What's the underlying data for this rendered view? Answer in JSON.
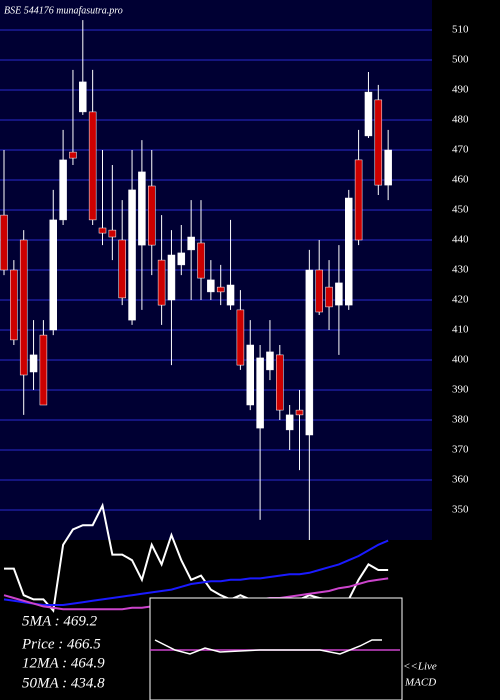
{
  "chart_data": {
    "type": "candlestick",
    "title": "BSE 544176 munafasutra.pro",
    "categories": [
      null,
      null,
      null,
      null,
      null,
      null,
      null,
      null,
      null,
      null,
      null,
      null,
      null,
      null,
      null,
      null,
      null,
      null,
      null,
      null,
      null,
      null,
      null,
      null,
      null,
      null,
      null,
      null,
      null,
      null,
      null,
      null,
      null,
      null,
      null,
      null,
      null,
      null,
      null,
      null
    ],
    "open": [
      448.3,
      430,
      440,
      396,
      408.3,
      410,
      446.7,
      469.3,
      482.7,
      482.7,
      444,
      443.3,
      440,
      413.3,
      438.3,
      458,
      433.3,
      420,
      431.7,
      436.7,
      439,
      422.7,
      424.3,
      418.3,
      416.7,
      385,
      377.3,
      396.7,
      401.7,
      376.7,
      383.3,
      375,
      430,
      424.3,
      418.3,
      418.3,
      466.7,
      474.7,
      486.7,
      458.3
    ],
    "high": [
      470,
      433.3,
      443.3,
      413.3,
      413.3,
      456.7,
      476.7,
      496.7,
      513.3,
      496.7,
      470,
      465,
      453.3,
      470,
      473.3,
      470,
      448.3,
      443.3,
      445,
      453.3,
      453.3,
      433.3,
      431.7,
      446.7,
      423.3,
      413.3,
      405,
      413.3,
      405,
      385,
      390,
      436.7,
      440,
      433.3,
      438.3,
      456.7,
      476.7,
      496,
      491.7,
      476.7
    ],
    "low": [
      428.3,
      405,
      381.7,
      390,
      385,
      408.3,
      445,
      465,
      481.7,
      445,
      438.3,
      433.3,
      418.3,
      411.7,
      416.7,
      428.3,
      411.7,
      398.3,
      428.3,
      420,
      420,
      420,
      418.3,
      416.7,
      396.7,
      383.3,
      346.7,
      393.3,
      380,
      370,
      363.3,
      340,
      415,
      410,
      401.7,
      416.7,
      438.3,
      474,
      455,
      453.3
    ],
    "close": [
      430,
      406.7,
      395,
      401.7,
      385,
      446.7,
      466.7,
      467.3,
      492.7,
      446.7,
      442.3,
      441,
      420.7,
      456.7,
      462.7,
      438.3,
      418.3,
      435,
      435.7,
      441,
      427.3,
      426.7,
      422.7,
      425,
      398.3,
      405,
      400.7,
      402.7,
      383.3,
      381.7,
      381.7,
      430,
      416,
      417.7,
      425.7,
      454,
      440,
      489.3,
      458.3,
      470
    ],
    "up_color": "#ffffff",
    "down_color": "#cc0000",
    "ylim": [
      340,
      520
    ],
    "yticks": [
      350,
      360,
      370,
      380,
      390,
      400,
      410,
      420,
      430,
      440,
      450,
      460,
      470,
      480,
      490,
      500,
      510
    ],
    "grid": true,
    "indicator_panel": {
      "ylim": [
        0,
        100
      ],
      "series": [
        {
          "color": "#ffffff",
          "values": [
            51,
            51,
            32,
            29,
            29,
            21,
            68,
            79,
            82,
            82,
            96,
            61,
            61,
            57,
            43,
            68,
            54,
            75,
            57,
            43,
            46,
            36,
            32,
            29,
            32,
            29,
            21,
            14,
            21,
            29,
            29,
            32,
            30,
            29,
            29,
            29,
            43,
            54,
            50,
            50
          ]
        },
        {
          "color": "#1a1aff",
          "values": [
            29,
            28,
            27,
            26,
            25,
            25,
            25,
            26,
            27,
            28,
            29,
            30,
            31,
            32,
            33,
            34,
            35,
            36,
            38,
            40,
            41,
            42,
            42,
            43,
            43,
            44,
            44,
            45,
            46,
            47,
            47,
            48,
            50,
            52,
            54,
            57,
            60,
            64,
            68,
            71
          ]
        },
        {
          "color": "#cc44cc",
          "values": [
            32,
            30,
            28,
            26,
            24,
            23,
            22,
            22,
            22,
            22,
            22,
            22,
            22,
            23,
            23,
            24,
            24,
            25,
            25,
            26,
            26,
            27,
            27,
            28,
            28,
            29,
            29,
            30,
            30,
            31,
            32,
            33,
            34,
            35,
            37,
            38,
            40,
            42,
            43,
            44
          ]
        }
      ]
    },
    "annotations": [
      "5MA : 469.2",
      "Price : 466.5",
      "12MA : 464.9",
      "50MA : 434.8"
    ],
    "macd_label": [
      "<<Live",
      "MACD"
    ]
  }
}
